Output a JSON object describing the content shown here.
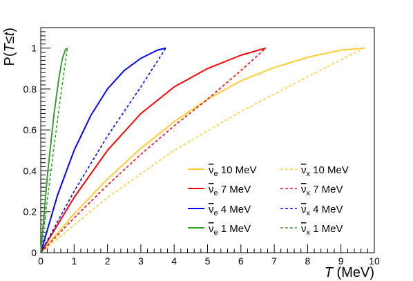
{
  "chart_data": {
    "type": "line",
    "title": "",
    "xlabel": {
      "main": "T",
      "unit": "(MeV)"
    },
    "ylabel": {
      "prefix": "P(",
      "italic": "T",
      "op": "≤",
      "italic2": "t",
      "suffix": ")"
    },
    "xlim": [
      0,
      10
    ],
    "ylim": [
      0,
      1.1
    ],
    "xticks": [
      "0",
      "1",
      "2",
      "3",
      "4",
      "5",
      "6",
      "7",
      "8",
      "9",
      "10"
    ],
    "yticks": [
      "0",
      "0.2",
      "0.4",
      "0.6",
      "0.8",
      "1"
    ],
    "grid": false,
    "legend_position": "bottom-right",
    "series": [
      {
        "name": "ν̄e 10 MeV",
        "flavor": "e",
        "energy": "10 MeV",
        "color": "#ffcc33",
        "style": "solid",
        "x": [
          0,
          1,
          2,
          3,
          4,
          5,
          6,
          7,
          8,
          9,
          9.7
        ],
        "y": [
          0,
          0.19,
          0.36,
          0.51,
          0.64,
          0.75,
          0.84,
          0.905,
          0.955,
          0.99,
          1.0
        ]
      },
      {
        "name": "ν̄x 10 MeV",
        "flavor": "x",
        "energy": "10 MeV",
        "color": "#ffcc33",
        "style": "dashed",
        "x": [
          0,
          2,
          4,
          6,
          8,
          9.7
        ],
        "y": [
          0,
          0.27,
          0.5,
          0.69,
          0.86,
          1.0
        ]
      },
      {
        "name": "ν̄e 7 MeV",
        "flavor": "e",
        "energy": "7 MeV",
        "color": "#ff0000",
        "style": "solid",
        "x": [
          0,
          1,
          2,
          3,
          4,
          5,
          6,
          6.75
        ],
        "y": [
          0,
          0.27,
          0.5,
          0.68,
          0.81,
          0.9,
          0.965,
          1.0
        ]
      },
      {
        "name": "ν̄x 7 MeV",
        "flavor": "x",
        "energy": "7 MeV",
        "color": "#ff0000",
        "style": "dashed",
        "x": [
          0,
          1,
          2,
          3,
          4,
          5,
          6,
          6.75
        ],
        "y": [
          0,
          0.17,
          0.33,
          0.48,
          0.62,
          0.75,
          0.89,
          1.0
        ]
      },
      {
        "name": "ν̄e 4 MeV",
        "flavor": "e",
        "energy": "4 MeV",
        "color": "#0000ff",
        "style": "solid",
        "x": [
          0,
          0.5,
          1,
          1.5,
          2,
          2.5,
          3,
          3.5,
          3.75
        ],
        "y": [
          0,
          0.28,
          0.5,
          0.67,
          0.8,
          0.89,
          0.95,
          0.99,
          1.0
        ]
      },
      {
        "name": "ν̄x 4 MeV",
        "flavor": "x",
        "energy": "4 MeV",
        "color": "#0000ff",
        "style": "dashed",
        "x": [
          0,
          1,
          2,
          3,
          3.75
        ],
        "y": [
          0,
          0.3,
          0.57,
          0.81,
          1.0
        ]
      },
      {
        "name": "ν̄e 1 MeV",
        "flavor": "e",
        "energy": "1 MeV",
        "color": "#33a02c",
        "style": "solid",
        "x": [
          0,
          0.2,
          0.4,
          0.55,
          0.65,
          0.75,
          0.8
        ],
        "y": [
          0,
          0.38,
          0.68,
          0.86,
          0.95,
          0.995,
          1.0
        ]
      },
      {
        "name": "ν̄x 1 MeV",
        "flavor": "x",
        "energy": "1 MeV",
        "color": "#33a02c",
        "style": "dashed",
        "x": [
          0,
          0.2,
          0.4,
          0.6,
          0.8
        ],
        "y": [
          0,
          0.26,
          0.52,
          0.77,
          1.0
        ]
      }
    ]
  }
}
